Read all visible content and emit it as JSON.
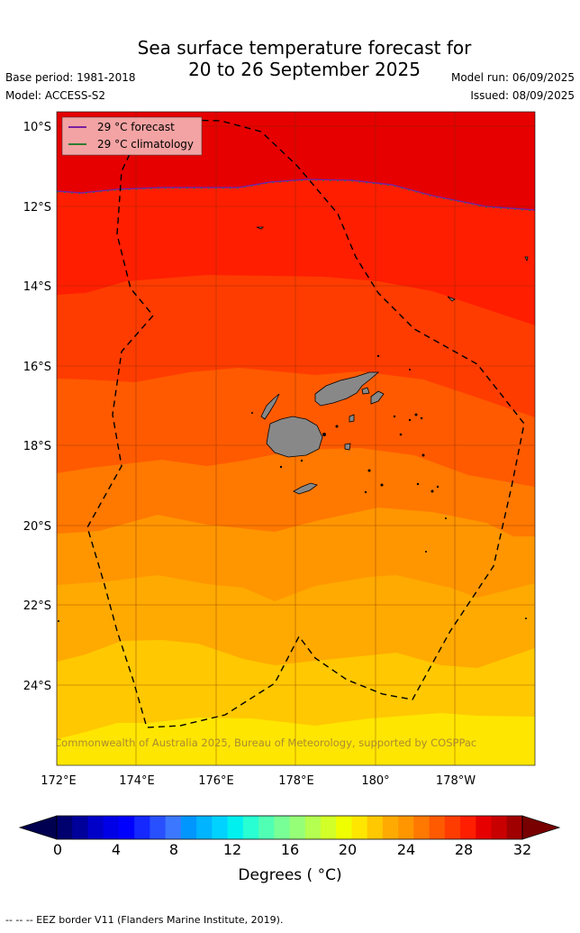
{
  "header": {
    "title_line1": "Sea surface temperature forecast for",
    "title_line2": "20 to 26 September 2025",
    "base_period": "Base period: 1981-2018",
    "model": "Model: ACCESS-S2",
    "model_run": "Model run: 06/09/2025",
    "issued": "Issued: 08/09/2025"
  },
  "legend": {
    "forecast_label": "29 °C  forecast",
    "forecast_color": "#7a1fa0",
    "climatology_label": "29 °C  climatology",
    "climatology_color": "#2e7d32"
  },
  "map": {
    "lat_labels": [
      "10°S",
      "12°S",
      "14°S",
      "16°S",
      "18°S",
      "20°S",
      "22°S",
      "24°S"
    ],
    "lon_labels": [
      "172°E",
      "174°E",
      "176°E",
      "178°E",
      "180°",
      "178°W"
    ],
    "copyright": "© Commonwealth of Australia 2025, Bureau of Meteorology, supported by COSPPac",
    "land_color": "#888888",
    "sst_band_colors": [
      "#e60000",
      "#ff1e00",
      "#ff3c00",
      "#ff5a00",
      "#ff7800",
      "#ff9600",
      "#ffaa00",
      "#ffc800",
      "#ffe600"
    ]
  },
  "colorbar": {
    "tick_labels": [
      "0",
      "4",
      "8",
      "12",
      "16",
      "20",
      "24",
      "28",
      "32"
    ],
    "title": "Degrees ( °C)",
    "colors": [
      "#00006e",
      "#00009b",
      "#0000c8",
      "#0000e6",
      "#0000ff",
      "#1428ff",
      "#2850ff",
      "#3c78ff",
      "#0096ff",
      "#00b4ff",
      "#00d2ff",
      "#00f0f0",
      "#28ffd2",
      "#50ffb4",
      "#78ff96",
      "#96ff78",
      "#b4ff50",
      "#d2ff28",
      "#f0ff00",
      "#ffe600",
      "#ffc800",
      "#ffaa00",
      "#ff9600",
      "#ff7800",
      "#ff5a00",
      "#ff3c00",
      "#ff1e00",
      "#e60000",
      "#c80000",
      "#a00000"
    ],
    "under_color": "#000050",
    "over_color": "#780000"
  },
  "footer": {
    "eez": "--  --  -- EEZ border V11 (Flanders Marine Institute, 2019)."
  }
}
